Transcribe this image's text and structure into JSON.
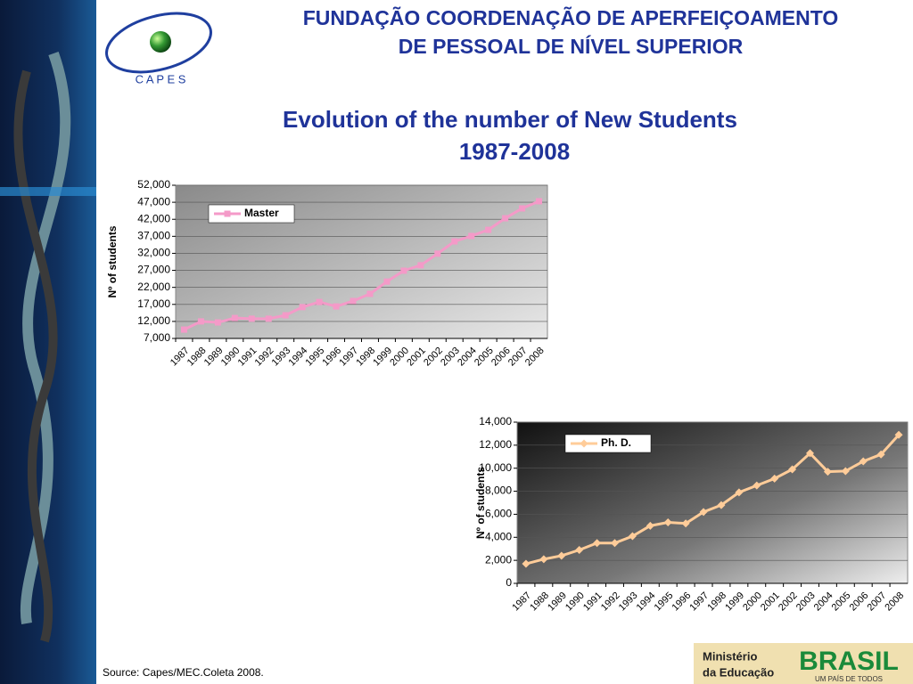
{
  "header": {
    "org_line1": "FUNDAÇÃO COORDENAÇÃO DE APERFEIÇOAMENTO",
    "org_line2": "DE PESSOAL DE NÍVEL SUPERIOR",
    "logo": "C A P E S",
    "title_line1": "Evolution of the number of New Students",
    "title_line2": "1987-2008"
  },
  "footer": {
    "source": "Source: Capes/MEC.Coleta 2008.",
    "ministry_line1": "Ministério",
    "ministry_line2": "da Educação",
    "brand": "BRASIL",
    "slogan": "UM PAÍS DE TODOS"
  },
  "chart_data": [
    {
      "type": "line",
      "y_label": "Nº of students",
      "categories": [
        "1987",
        "1988",
        "1989",
        "1990",
        "1991",
        "1992",
        "1993",
        "1994",
        "1995",
        "1996",
        "1997",
        "1998",
        "1999",
        "2000",
        "2001",
        "2002",
        "2003",
        "2004",
        "2005",
        "2006",
        "2007",
        "2008"
      ],
      "series": [
        {
          "name": "Master",
          "color": "#f49ac8",
          "values": [
            9600,
            12000,
            11700,
            13000,
            12800,
            12800,
            13800,
            16200,
            17700,
            16400,
            18000,
            20100,
            23700,
            26900,
            28500,
            31900,
            35500,
            37100,
            38900,
            42300,
            45200,
            47300
          ]
        }
      ],
      "ylim": [
        7000,
        52000
      ],
      "yticks": [
        {
          "value": 7000,
          "label": "7,000"
        },
        {
          "value": 12000,
          "label": "12,000"
        },
        {
          "value": 17000,
          "label": "17,000"
        },
        {
          "value": 22000,
          "label": "22,000"
        },
        {
          "value": 27000,
          "label": "27,000"
        },
        {
          "value": 32000,
          "label": "32,000"
        },
        {
          "value": 37000,
          "label": "37,000"
        },
        {
          "value": 42000,
          "label": "42,000"
        },
        {
          "value": 47000,
          "label": "47,000"
        },
        {
          "value": 52000,
          "label": "52,000"
        }
      ],
      "grid": true,
      "marker": "square"
    },
    {
      "type": "line",
      "y_label": "Nº of students",
      "categories": [
        "1987",
        "1988",
        "1989",
        "1990",
        "1991",
        "1992",
        "1993",
        "1994",
        "1995",
        "1996",
        "1997",
        "1998",
        "1999",
        "2000",
        "2001",
        "2002",
        "2003",
        "2004",
        "2005",
        "2006",
        "2007",
        "2008"
      ],
      "series": [
        {
          "name": "Ph. D.",
          "color": "#ffcc99",
          "values": [
            1700,
            2100,
            2400,
            2900,
            3500,
            3500,
            4100,
            5000,
            5300,
            5200,
            6200,
            6800,
            7900,
            8500,
            9100,
            9900,
            11300,
            9700,
            9750,
            10600,
            11200,
            12900
          ]
        }
      ],
      "ylim": [
        0,
        14000
      ],
      "yticks": [
        0,
        {
          "value": 2000,
          "label": "2,000"
        },
        {
          "value": 4000,
          "label": "4,000"
        },
        {
          "value": 6000,
          "label": "6,000"
        },
        {
          "value": 8000,
          "label": "8,000"
        },
        {
          "value": 10000,
          "label": "10,000"
        },
        {
          "value": 12000,
          "label": "12,000"
        },
        {
          "value": 14000,
          "label": "14,000"
        }
      ],
      "grid": true,
      "marker": "diamond"
    }
  ]
}
